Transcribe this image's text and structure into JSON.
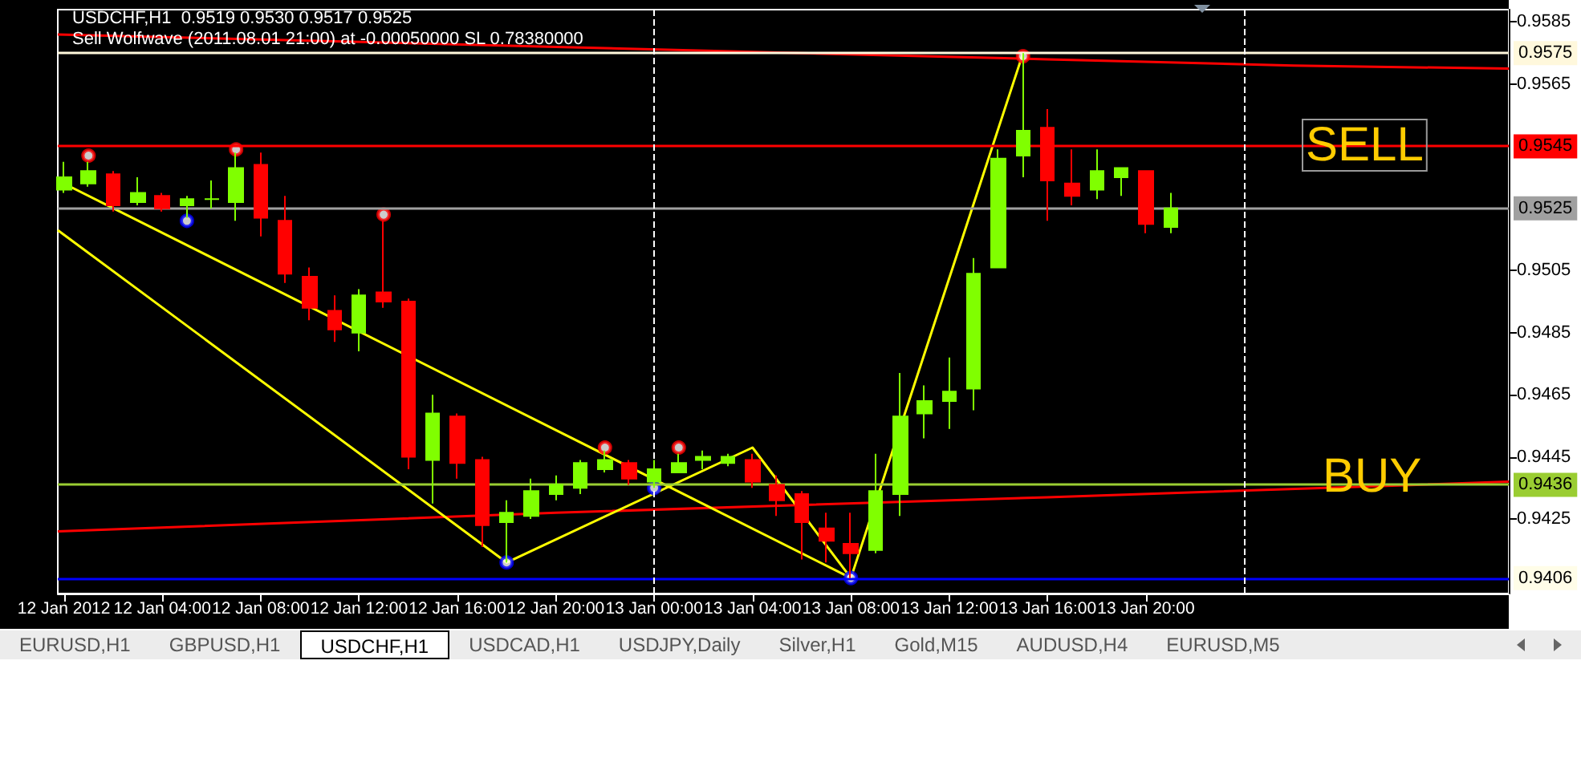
{
  "chart_data": {
    "type": "candlestick",
    "title": "USDCHF,H1  0.9519 0.9530 0.9517 0.9525",
    "subtitle": "Sell Wolfwave (2011.08.01 21:00) at -0.00050000 SL 0.78380000",
    "xlim": [
      "2012-01-11T23:45",
      "2012-01-14T10:45"
    ],
    "xticks": [
      {
        "value": "2012-01-12T00:00",
        "label": "12 Jan 2012"
      },
      {
        "value": "2012-01-12T04:00",
        "label": "12 Jan 04:00"
      },
      {
        "value": "2012-01-12T08:00",
        "label": "12 Jan 08:00"
      },
      {
        "value": "2012-01-12T12:00",
        "label": "12 Jan 12:00"
      },
      {
        "value": "2012-01-12T16:00",
        "label": "12 Jan 16:00"
      },
      {
        "value": "2012-01-12T20:00",
        "label": "12 Jan 20:00"
      },
      {
        "value": "2012-01-13T00:00",
        "label": "13 Jan 00:00"
      },
      {
        "value": "2012-01-13T04:00",
        "label": "13 Jan 04:00"
      },
      {
        "value": "2012-01-13T08:00",
        "label": "13 Jan 08:00"
      },
      {
        "value": "2012-01-13T12:00",
        "label": "13 Jan 12:00"
      },
      {
        "value": "2012-01-13T16:00",
        "label": "13 Jan 16:00"
      },
      {
        "value": "2012-01-13T20:00",
        "label": "13 Jan 20:00"
      }
    ],
    "ylim": [
      0.9401,
      0.9589
    ],
    "yticks": [
      {
        "value": 0.9425,
        "label": "0.9425"
      },
      {
        "value": 0.9445,
        "label": "0.9445"
      },
      {
        "value": 0.9465,
        "label": "0.9465"
      },
      {
        "value": 0.9485,
        "label": "0.9485"
      },
      {
        "value": 0.9505,
        "label": "0.9505"
      },
      {
        "value": 0.9565,
        "label": "0.9565"
      },
      {
        "value": 0.9585,
        "label": "0.9585"
      }
    ],
    "ref_lines": [
      {
        "axis": "y",
        "value": 0.9575,
        "label": "0.9575",
        "color": "#fff8dc"
      },
      {
        "axis": "y",
        "value": 0.9545,
        "label": "0.9545",
        "color": "#ff0000"
      },
      {
        "axis": "y",
        "value": 0.9525,
        "label": "0.9525",
        "color": "#a0a0a0"
      },
      {
        "axis": "y",
        "value": 0.9436,
        "label": "0.9436",
        "color": "#9acd32"
      },
      {
        "axis": "y",
        "value": 0.9406,
        "label": "0.9406",
        "color": "#0000ff"
      },
      {
        "axis": "x",
        "value": "2012-01-13T00:00",
        "label": null,
        "color": "#ffffff",
        "line_style": "dashed"
      },
      {
        "axis": "x",
        "value": "2012-01-14T00:00",
        "label": null,
        "color": "#ffffff",
        "line_style": "dashed"
      }
    ],
    "annotations": [
      "SELL",
      "BUY",
      "EURUSD,H1",
      "GBPUSD,H1",
      "USDCHF,H1",
      "USDCAD,H1",
      "USDJPY,Daily",
      "Silver,H1",
      "Gold,M15",
      "AUDUSD,H4",
      "EURUSD,M5"
    ],
    "series": [
      {
        "type": "candlestick",
        "x": [
          "2012-01-12T00:00",
          "2012-01-12T01:00",
          "2012-01-12T02:00",
          "2012-01-12T03:00",
          "2012-01-12T04:00",
          "2012-01-12T05:00",
          "2012-01-12T06:00",
          "2012-01-12T07:00",
          "2012-01-12T08:00",
          "2012-01-12T09:00",
          "2012-01-12T10:00",
          "2012-01-12T11:00",
          "2012-01-12T12:00",
          "2012-01-12T13:00",
          "2012-01-12T14:00",
          "2012-01-12T15:00",
          "2012-01-12T16:00",
          "2012-01-12T17:00",
          "2012-01-12T18:00",
          "2012-01-12T19:00",
          "2012-01-12T20:00",
          "2012-01-12T21:00",
          "2012-01-12T22:00",
          "2012-01-12T23:00",
          "2012-01-13T00:00",
          "2012-01-13T01:00",
          "2012-01-13T02:00",
          "2012-01-13T03:00",
          "2012-01-13T04:00",
          "2012-01-13T05:00",
          "2012-01-13T06:00",
          "2012-01-13T07:00",
          "2012-01-13T08:00",
          "2012-01-13T09:00",
          "2012-01-13T10:00",
          "2012-01-13T11:00",
          "2012-01-13T12:00",
          "2012-01-13T13:00",
          "2012-01-13T14:00",
          "2012-01-13T15:00",
          "2012-01-13T16:00",
          "2012-01-13T17:00",
          "2012-01-13T18:00",
          "2012-01-13T19:00",
          "2012-01-13T20:00",
          "2012-01-13T21:00"
        ],
        "ohlc": [
          [
            0.9531,
            0.954,
            0.953,
            0.9535
          ],
          [
            0.9533,
            0.954,
            0.9532,
            0.9537
          ],
          [
            0.9536,
            0.9537,
            0.9524,
            0.9526
          ],
          [
            0.9527,
            0.9535,
            0.9526,
            0.953
          ],
          [
            0.9529,
            0.953,
            0.9524,
            0.9525
          ],
          [
            0.9526,
            0.9529,
            0.9522,
            0.9528
          ],
          [
            0.9528,
            0.9534,
            0.9525,
            0.9528
          ],
          [
            0.9527,
            0.9543,
            0.9521,
            0.9538
          ],
          [
            0.9539,
            0.9543,
            0.9516,
            0.9522
          ],
          [
            0.9521,
            0.9529,
            0.9501,
            0.9504
          ],
          [
            0.9503,
            0.9506,
            0.9489,
            0.9493
          ],
          [
            0.9492,
            0.9497,
            0.9482,
            0.9486
          ],
          [
            0.9485,
            0.9499,
            0.9479,
            0.9497
          ],
          [
            0.9498,
            0.9521,
            0.9493,
            0.9495
          ],
          [
            0.9495,
            0.9496,
            0.9441,
            0.9445
          ],
          [
            0.9444,
            0.9465,
            0.943,
            0.9459
          ],
          [
            0.9458,
            0.9459,
            0.9438,
            0.9443
          ],
          [
            0.9444,
            0.9445,
            0.9416,
            0.9423
          ],
          [
            0.9424,
            0.9431,
            0.9411,
            0.9427
          ],
          [
            0.9426,
            0.9438,
            0.9425,
            0.9434
          ],
          [
            0.9433,
            0.9439,
            0.9431,
            0.9436
          ],
          [
            0.9435,
            0.9444,
            0.9433,
            0.9443
          ],
          [
            0.9441,
            0.9447,
            0.944,
            0.9444
          ],
          [
            0.9443,
            0.9444,
            0.9436,
            0.9438
          ],
          [
            0.9437,
            0.9444,
            0.9435,
            0.9441
          ],
          [
            0.944,
            0.9446,
            0.944,
            0.9443
          ],
          [
            0.9444,
            0.9447,
            0.9441,
            0.9445
          ],
          [
            0.9443,
            0.9446,
            0.9442,
            0.9445
          ],
          [
            0.9444,
            0.9446,
            0.9435,
            0.9437
          ],
          [
            0.9436,
            0.9439,
            0.9426,
            0.9431
          ],
          [
            0.9433,
            0.9434,
            0.9412,
            0.9424
          ],
          [
            0.9422,
            0.9427,
            0.9411,
            0.9418
          ],
          [
            0.9417,
            0.9427,
            0.9406,
            0.9414
          ],
          [
            0.9415,
            0.9446,
            0.9414,
            0.9434
          ],
          [
            0.9433,
            0.9472,
            0.9426,
            0.9458
          ],
          [
            0.9459,
            0.9468,
            0.9451,
            0.9463
          ],
          [
            0.9463,
            0.9477,
            0.9454,
            0.9466
          ],
          [
            0.9467,
            0.9509,
            0.946,
            0.9504
          ],
          [
            0.9506,
            0.9544,
            0.9506,
            0.9541
          ],
          [
            0.9542,
            0.9575,
            0.9535,
            0.955
          ],
          [
            0.9551,
            0.9557,
            0.9521,
            0.9534
          ],
          [
            0.9533,
            0.9544,
            0.9526,
            0.9529
          ],
          [
            0.9531,
            0.9544,
            0.9528,
            0.9537
          ],
          [
            0.9535,
            0.9538,
            0.9529,
            0.9538
          ],
          [
            0.9537,
            0.9537,
            0.9517,
            0.952
          ],
          [
            0.9519,
            0.953,
            0.9517,
            0.9525
          ]
        ],
        "colors": [
          "#80ff00",
          "#80ff00",
          "#ff0000",
          "#80ff00",
          "#ff0000",
          "#80ff00",
          "#80ff00",
          "#80ff00",
          "#ff0000",
          "#ff0000",
          "#ff0000",
          "#ff0000",
          "#80ff00",
          "#ff0000",
          "#ff0000",
          "#80ff00",
          "#ff0000",
          "#ff0000",
          "#80ff00",
          "#80ff00",
          "#80ff00",
          "#80ff00",
          "#80ff00",
          "#ff0000",
          "#80ff00",
          "#80ff00",
          "#80ff00",
          "#80ff00",
          "#ff0000",
          "#ff0000",
          "#ff0000",
          "#ff0000",
          "#ff0000",
          "#80ff00",
          "#80ff00",
          "#80ff00",
          "#80ff00",
          "#80ff00",
          "#80ff00",
          "#80ff00",
          "#ff0000",
          "#ff0000",
          "#80ff00",
          "#80ff00",
          "#ff0000",
          "#80ff00"
        ]
      },
      {
        "type": "line",
        "color": "#ff0000",
        "marker": "none",
        "x": [
          "2012-01-11T23:45",
          "2012-01-12T10:00",
          "2012-01-12T20:00",
          "2012-01-13T06:00",
          "2012-01-13T16:00",
          "2012-01-14T02:00",
          "2012-01-14T10:45"
        ],
        "values": [
          0.9581,
          0.9579,
          0.9577,
          0.9575,
          0.9573,
          0.9571,
          0.957
        ]
      },
      {
        "type": "line",
        "color": "#ff0000",
        "marker": "none",
        "x": [
          "2012-01-11T23:45",
          "2012-01-12T20:00",
          "2012-01-13T16:00",
          "2012-01-14T10:45"
        ],
        "values": [
          0.9421,
          0.9427,
          0.9432,
          0.9437
        ]
      },
      {
        "type": "line",
        "color": "#ffff00",
        "marker": "none",
        "x": [
          "2012-01-11T23:45",
          "2012-01-13T08:00"
        ],
        "values": [
          0.9534,
          0.9406
        ]
      },
      {
        "type": "line",
        "color": "#ffff00",
        "marker": "none",
        "x": [
          "2012-01-11T23:45",
          "2012-01-12T18:00",
          "2012-01-13T04:00",
          "2012-01-13T08:00",
          "2012-01-13T15:00"
        ],
        "values": [
          0.9518,
          0.9411,
          0.9448,
          0.9406,
          0.9575
        ]
      },
      {
        "type": "scatter",
        "color": "#ff0000",
        "marker": "circle",
        "x": [
          "2012-01-12T01:00",
          "2012-01-12T07:00",
          "2012-01-12T13:00",
          "2012-01-12T22:00",
          "2012-01-13T01:00",
          "2012-01-13T15:00"
        ],
        "values": [
          0.9542,
          0.9544,
          0.9523,
          0.9448,
          0.9448,
          0.9574
        ]
      },
      {
        "type": "scatter",
        "color": "#0000ff",
        "marker": "circle",
        "x": [
          "2012-01-12T05:00",
          "2012-01-12T18:00",
          "2012-01-13T00:00",
          "2012-01-13T08:00"
        ],
        "values": [
          0.9521,
          0.9411,
          0.9435,
          0.9406
        ]
      }
    ]
  }
}
